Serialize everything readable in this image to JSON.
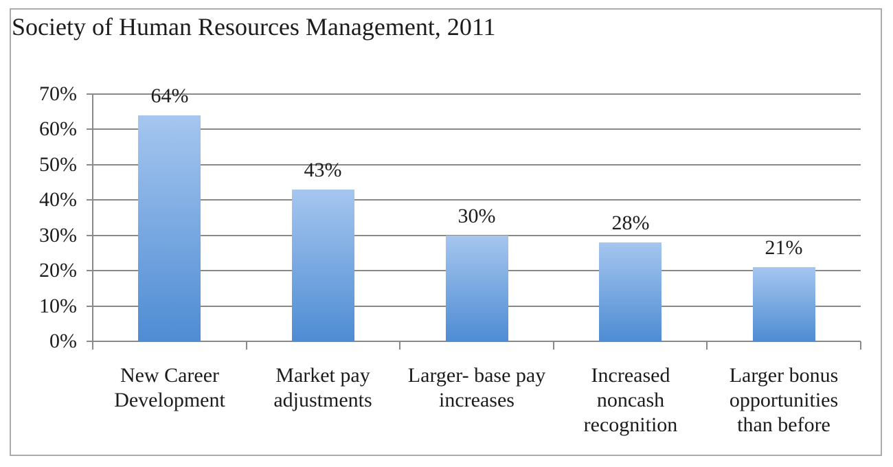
{
  "title": "Society of Human Resources Management, 2011",
  "chart_data": {
    "type": "bar",
    "title": "Society of Human Resources Management, 2011",
    "categories": [
      "New Career Development",
      "Market pay adjustments",
      "Larger- base pay increases",
      "Increased noncash recognition",
      "Larger bonus opportunities than before"
    ],
    "category_label_lines": [
      [
        "New Career",
        "Development"
      ],
      [
        "Market pay",
        "adjustments"
      ],
      [
        "Larger- base pay",
        "increases"
      ],
      [
        "Increased",
        "noncash",
        "recognition"
      ],
      [
        "Larger bonus",
        "opportunities",
        "than before"
      ]
    ],
    "values": [
      64,
      43,
      30,
      28,
      21
    ],
    "data_labels": [
      "64%",
      "43%",
      "30%",
      "28%",
      "21%"
    ],
    "y_tick_labels": [
      "0%",
      "10%",
      "20%",
      "30%",
      "40%",
      "50%",
      "60%",
      "70%"
    ],
    "y_tick_values": [
      0,
      10,
      20,
      30,
      40,
      50,
      60,
      70
    ],
    "ylim": [
      0,
      70
    ],
    "xlabel": "",
    "ylabel": "",
    "grid": true,
    "legend": false,
    "colors": {
      "bar_gradient_top": "#a5c6ef",
      "bar_gradient_bottom": "#4e8cd3",
      "gridline": "#898989",
      "axis": "#898989",
      "frame_border": "#ababab",
      "text": "#1c1c1c",
      "background": "#ffffff"
    }
  }
}
